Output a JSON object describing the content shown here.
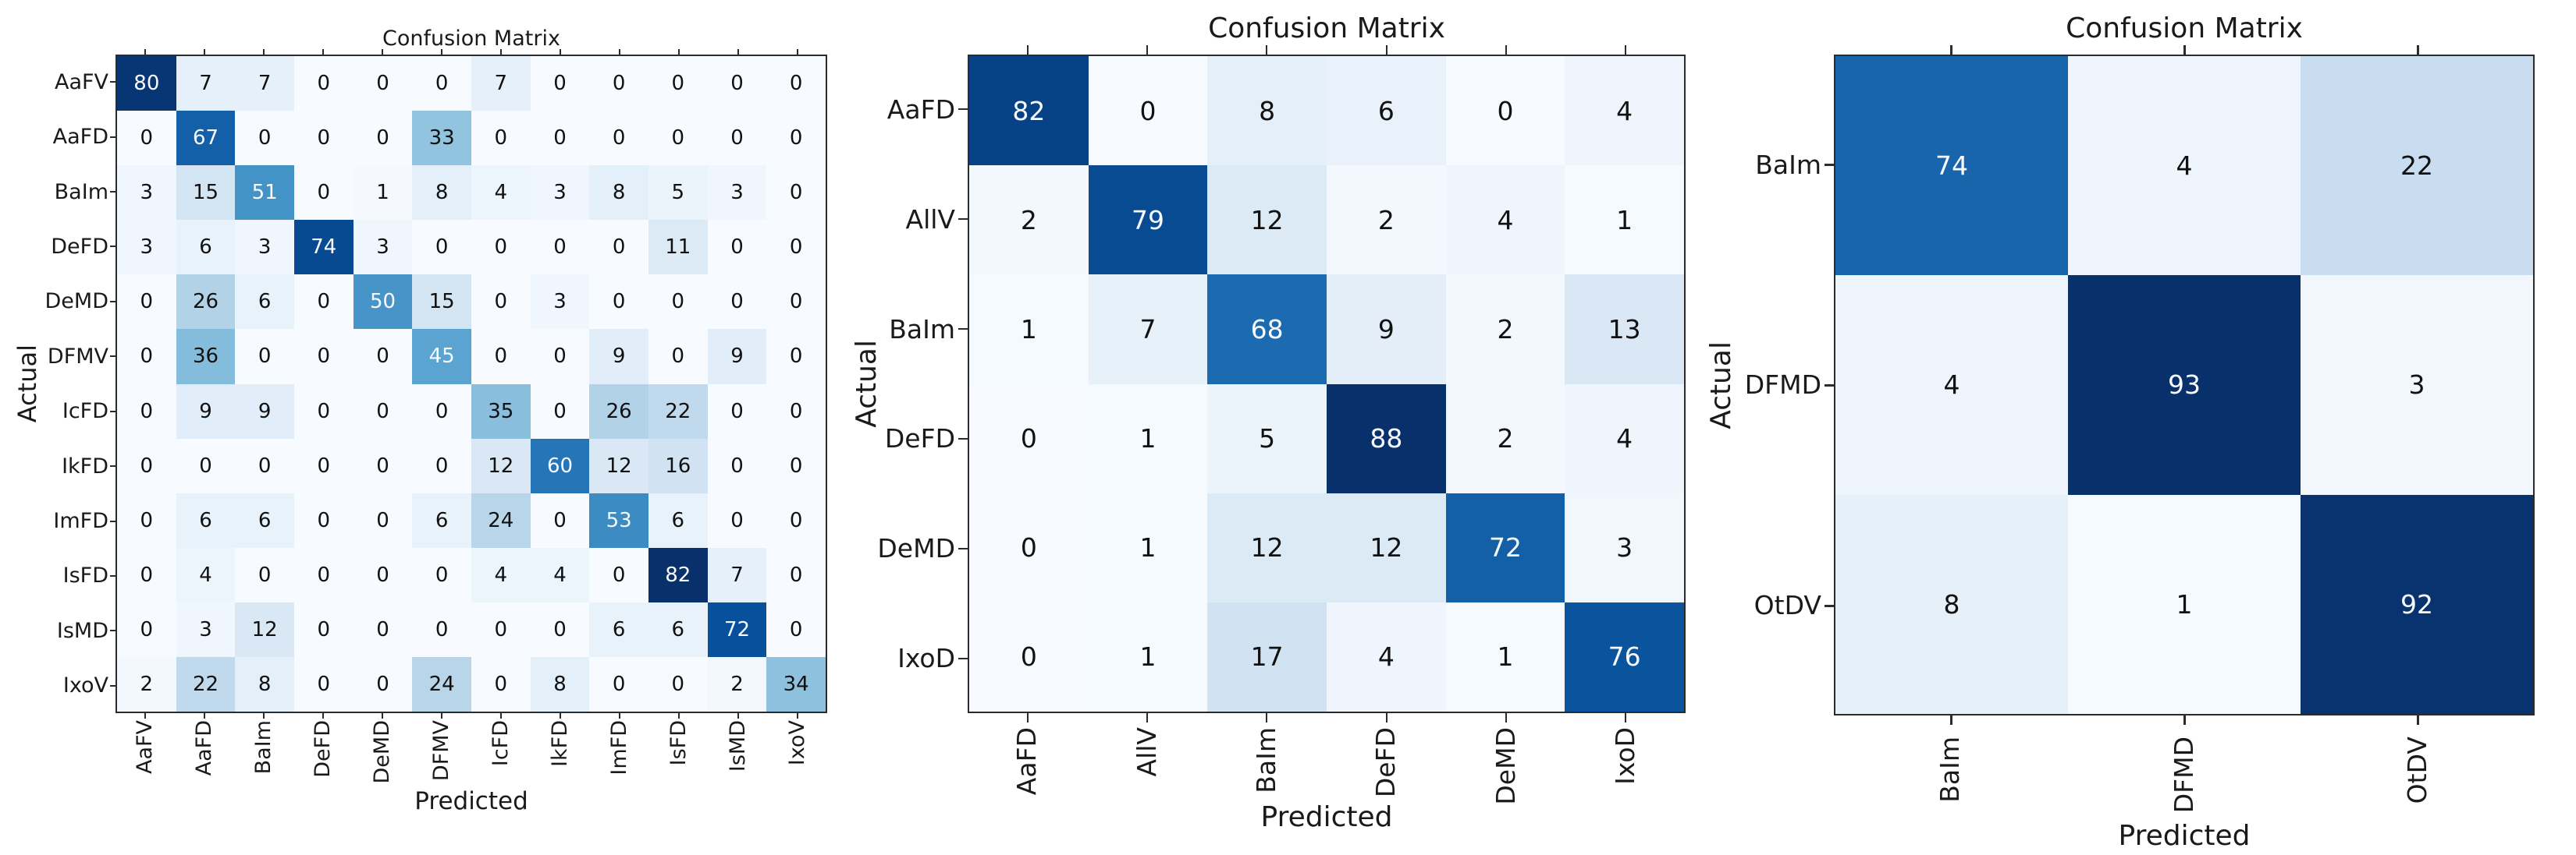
{
  "page": {
    "background": "#ffffff"
  },
  "colors": {
    "colormap_name": "Blues",
    "colormap_stops": [
      "#f7fbff",
      "#deebf7",
      "#c6dbef",
      "#9ecae1",
      "#6baed6",
      "#4292c6",
      "#2171b5",
      "#08519c",
      "#08306b"
    ],
    "cell_text_dark": "#111111",
    "cell_text_light": "#f7fbff",
    "axis_text": "#1a1a1a",
    "spine": "#2b2b2b"
  },
  "chart_data": [
    {
      "type": "heatmap",
      "title": "Confusion Matrix",
      "xlabel": "Predicted",
      "ylabel": "Actual",
      "colormap": "Blues",
      "vmin": 0,
      "vmax": 82,
      "grid": false,
      "y_tick_labels": [
        "AaFV",
        "AaFD",
        "BaIm",
        "DeFD",
        "DeMD",
        "DFMV",
        "IcFD",
        "IkFD",
        "ImFD",
        "IsFD",
        "IsMD",
        "IxoV"
      ],
      "x_tick_labels": [
        "AaFV",
        "AaFD",
        "BaIm",
        "DeFD",
        "DeMD",
        "DFMV",
        "IcFD",
        "IkFD",
        "ImFD",
        "IsFD",
        "IsMD",
        "IxoV"
      ],
      "matrix": [
        [
          80,
          7,
          7,
          0,
          0,
          0,
          7,
          0,
          0,
          0,
          0,
          0
        ],
        [
          0,
          67,
          0,
          0,
          0,
          33,
          0,
          0,
          0,
          0,
          0,
          0
        ],
        [
          3,
          15,
          51,
          0,
          1,
          8,
          4,
          3,
          8,
          5,
          3,
          0
        ],
        [
          3,
          6,
          3,
          74,
          3,
          0,
          0,
          0,
          0,
          11,
          0,
          0
        ],
        [
          0,
          26,
          6,
          0,
          50,
          15,
          0,
          3,
          0,
          0,
          0,
          0
        ],
        [
          0,
          36,
          0,
          0,
          0,
          45,
          0,
          0,
          9,
          0,
          9,
          0
        ],
        [
          0,
          9,
          9,
          0,
          0,
          0,
          35,
          0,
          26,
          22,
          0,
          0
        ],
        [
          0,
          0,
          0,
          0,
          0,
          0,
          12,
          60,
          12,
          16,
          0,
          0
        ],
        [
          0,
          6,
          6,
          0,
          0,
          6,
          24,
          0,
          53,
          6,
          0,
          0
        ],
        [
          0,
          4,
          0,
          0,
          0,
          0,
          4,
          4,
          0,
          82,
          7,
          0
        ],
        [
          0,
          3,
          12,
          0,
          0,
          0,
          0,
          0,
          6,
          6,
          72,
          0
        ],
        [
          2,
          22,
          8,
          0,
          0,
          24,
          0,
          8,
          0,
          0,
          2,
          34
        ]
      ]
    },
    {
      "type": "heatmap",
      "title": "Confusion Matrix",
      "xlabel": "Predicted",
      "ylabel": "Actual",
      "colormap": "Blues",
      "vmin": 0,
      "vmax": 88,
      "grid": false,
      "y_tick_labels": [
        "AaFD",
        "AllV",
        "BaIm",
        "DeFD",
        "DeMD",
        "IxoD"
      ],
      "x_tick_labels": [
        "AaFD",
        "AllV",
        "BaIm",
        "DeFD",
        "DeMD",
        "IxoD"
      ],
      "matrix": [
        [
          82,
          0,
          8,
          6,
          0,
          4
        ],
        [
          2,
          79,
          12,
          2,
          4,
          1
        ],
        [
          1,
          7,
          68,
          9,
          2,
          13
        ],
        [
          0,
          1,
          5,
          88,
          2,
          4
        ],
        [
          0,
          1,
          12,
          12,
          72,
          3
        ],
        [
          0,
          1,
          17,
          4,
          1,
          76
        ]
      ]
    },
    {
      "type": "heatmap",
      "title": "Confusion Matrix",
      "xlabel": "Predicted",
      "ylabel": "Actual",
      "colormap": "Blues",
      "vmin": 0,
      "vmax": 93,
      "grid": false,
      "y_tick_labels": [
        "BaIm",
        "DFMD",
        "OtDV"
      ],
      "x_tick_labels": [
        "BaIm",
        "DFMD",
        "OtDV"
      ],
      "matrix": [
        [
          74,
          4,
          22
        ],
        [
          4,
          93,
          3
        ],
        [
          8,
          1,
          92
        ]
      ]
    }
  ]
}
